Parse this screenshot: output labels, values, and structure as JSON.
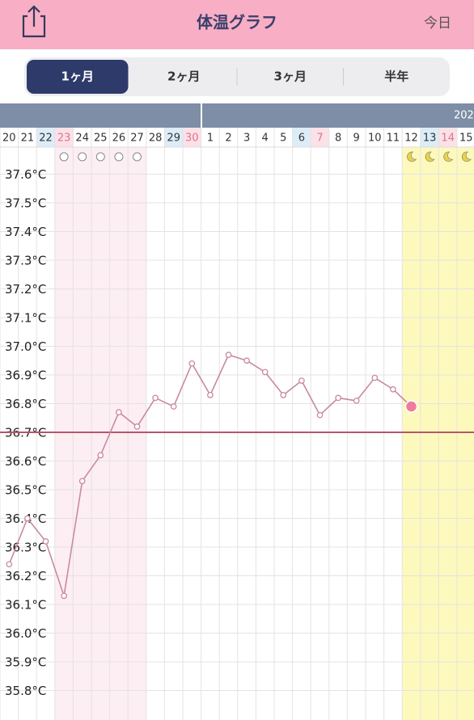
{
  "header": {
    "title": "体温グラフ",
    "today_button": "今日"
  },
  "tabs": [
    "1ヶ月",
    "2ヶ月",
    "3ヶ月",
    "半年"
  ],
  "selected_tab": 0,
  "month_bar": {
    "label": "202"
  },
  "chart_data": {
    "type": "line",
    "categories": [
      "20",
      "21",
      "22",
      "23",
      "24",
      "25",
      "26",
      "27",
      "28",
      "29",
      "30",
      "1",
      "2",
      "3",
      "4",
      "5",
      "6",
      "7",
      "8",
      "9",
      "10",
      "11",
      "12",
      "13",
      "14",
      "15"
    ],
    "series": [
      {
        "color": "#c98aa0",
        "values": [
          36.24,
          36.4,
          36.32,
          36.13,
          36.53,
          36.62,
          36.77,
          36.72,
          36.82,
          36.79,
          36.94,
          36.83,
          36.97,
          36.95,
          36.91,
          36.83,
          36.88,
          36.76,
          36.82,
          36.81,
          36.89,
          36.85,
          36.79,
          null,
          null,
          null
        ]
      }
    ],
    "ylim": [
      35.7,
      37.7
    ],
    "yticks": [
      {
        "value": 37.6,
        "label": "37.6°C"
      },
      {
        "value": 37.5,
        "label": "37.5°C"
      },
      {
        "value": 37.4,
        "label": "37.4°C"
      },
      {
        "value": 37.3,
        "label": "37.3°C"
      },
      {
        "value": 37.2,
        "label": "37.2°C"
      },
      {
        "value": 37.1,
        "label": "37.1°C"
      },
      {
        "value": 37.0,
        "label": "37.0°C"
      },
      {
        "value": 36.9,
        "label": "36.9°C"
      },
      {
        "value": 36.8,
        "label": "36.8°C"
      },
      {
        "value": 36.7,
        "label": "36.7°C"
      },
      {
        "value": 36.6,
        "label": "36.6°C"
      },
      {
        "value": 36.5,
        "label": "36.5°C"
      },
      {
        "value": 36.4,
        "label": "36.4°C"
      },
      {
        "value": 36.3,
        "label": "36.3°C"
      },
      {
        "value": 36.2,
        "label": "36.2°C"
      },
      {
        "value": 36.1,
        "label": "36.1°C"
      },
      {
        "value": 36.0,
        "label": "36.0°C"
      },
      {
        "value": 35.9,
        "label": "35.9°C"
      },
      {
        "value": 35.8,
        "label": "35.8°C"
      }
    ],
    "cover_line": 36.7,
    "cover_line_color": "#b5566b",
    "grid": true
  }
}
